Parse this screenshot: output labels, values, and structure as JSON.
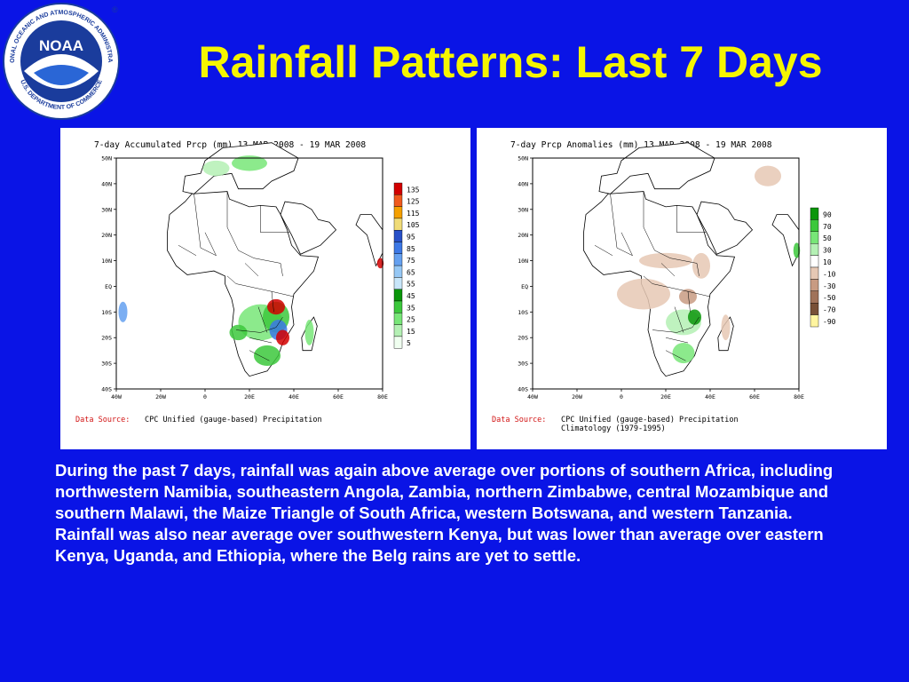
{
  "slide": {
    "title": "Rainfall Patterns: Last 7 Days",
    "description": "During the past 7 days, rainfall was again above average over portions of southern Africa, including northwestern Namibia, southeastern Angola, Zambia, northern Zimbabwe, central Mozambique and southern Malawi, the Maize Triangle of South Africa, western Botswana, and western Tanzania.  Rainfall was also near average over southwestern Kenya, but was lower than average over eastern Kenya, Uganda, and Ethiopia, where the Belg rains are yet to settle."
  },
  "logo": {
    "center_text": "NOAA",
    "ring_text_top": "NATIONAL OCEANIC AND ATMOSPHERIC ADMINISTRATION",
    "ring_text_bottom": "U.S. DEPARTMENT OF COMMERCE",
    "registered_mark": "®",
    "colors": {
      "blue": "#1a3c9c",
      "ring": "#ffffff",
      "sky": "#2a66d6"
    }
  },
  "maps": [
    {
      "id": "accumulated",
      "title": "7-day Accumulated Prcp (mm) 13 MAR 2008 - 19 MAR 2008",
      "lat_labels": [
        "50N",
        "40N",
        "30N",
        "20N",
        "10N",
        "EQ",
        "10S",
        "20S",
        "30S",
        "40S"
      ],
      "lon_labels": [
        "40W",
        "20W",
        "0",
        "20E",
        "40E",
        "60E",
        "80E"
      ],
      "source_label": "Data Source:",
      "source_lines": [
        "CPC Unified (gauge-based) Precipitation"
      ],
      "legend": [
        {
          "label": "135",
          "color": "#d20000"
        },
        {
          "label": "125",
          "color": "#f05a1e"
        },
        {
          "label": "115",
          "color": "#f5a000"
        },
        {
          "label": "105",
          "color": "#f0dc78"
        },
        {
          "label": "95",
          "color": "#2850c8"
        },
        {
          "label": "85",
          "color": "#3c78e6"
        },
        {
          "label": "75",
          "color": "#64a0f0"
        },
        {
          "label": "65",
          "color": "#96c8f5"
        },
        {
          "label": "55",
          "color": "#c8e6fa"
        },
        {
          "label": "45",
          "color": "#0a960a"
        },
        {
          "label": "35",
          "color": "#3cc83c"
        },
        {
          "label": "25",
          "color": "#78e678"
        },
        {
          "label": "15",
          "color": "#b4f0b4"
        },
        {
          "label": "5",
          "color": "#f0fff0"
        }
      ]
    },
    {
      "id": "anomalies",
      "title": "7-day Prcp Anomalies (mm) 13 MAR 2008 - 19 MAR 2008",
      "lat_labels": [
        "50N",
        "40N",
        "30N",
        "20N",
        "10N",
        "EQ",
        "10S",
        "20S",
        "30S",
        "40S"
      ],
      "lon_labels": [
        "40W",
        "20W",
        "0",
        "20E",
        "40E",
        "60E",
        "80E"
      ],
      "source_label": "Data Source:",
      "source_lines": [
        "CPC Unified (gauge-based) Precipitation",
        "Climatology (1979-1995)"
      ],
      "legend": [
        {
          "label": "90",
          "color": "#0a960a"
        },
        {
          "label": "70",
          "color": "#3cc83c"
        },
        {
          "label": "50",
          "color": "#78e678"
        },
        {
          "label": "30",
          "color": "#b4f0b4"
        },
        {
          "label": "10",
          "color": "#ffffff"
        },
        {
          "label": "-10",
          "color": "#e6c8b4"
        },
        {
          "label": "-30",
          "color": "#c89b82"
        },
        {
          "label": "-50",
          "color": "#a0735a"
        },
        {
          "label": "-70",
          "color": "#785037"
        },
        {
          "label": "-90",
          "color": "#fff5a0"
        }
      ]
    }
  ]
}
